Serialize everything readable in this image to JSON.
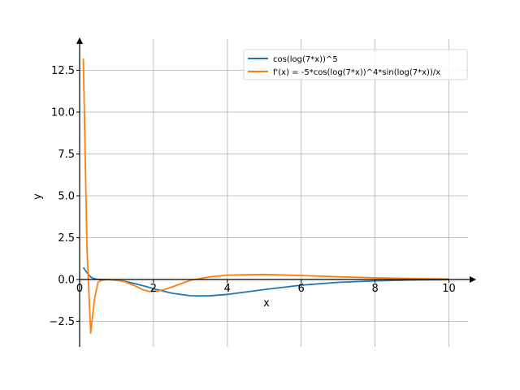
{
  "chart_data": {
    "type": "line",
    "title": "",
    "xlabel": "x",
    "ylabel": "y",
    "xlim": [
      0,
      10.7
    ],
    "ylim": [
      -4.0,
      14.2
    ],
    "xticks": [
      0,
      2,
      4,
      6,
      8,
      10
    ],
    "xtick_labels": [
      "0",
      "2",
      "4",
      "6",
      "8",
      "10"
    ],
    "yticks": [
      -2.5,
      0.0,
      2.5,
      5.0,
      7.5,
      10.0,
      12.5
    ],
    "ytick_labels": [
      "−2.5",
      "0.0",
      "2.5",
      "5.0",
      "7.5",
      "10.0",
      "12.5"
    ],
    "grid": true,
    "legend_position": "top-right",
    "series": [
      {
        "name": "cos(log(7*x))^5",
        "color": "#1f77b4",
        "x": [
          0.1,
          0.2,
          0.3,
          0.4,
          0.5,
          0.6,
          0.8,
          1.0,
          1.2,
          1.5,
          1.8,
          2.0,
          2.5,
          3.0,
          3.5,
          4.0,
          5.0,
          6.0,
          7.0,
          8.0,
          9.0,
          10.0
        ],
        "y": [
          0.72,
          0.4,
          0.15,
          0.04,
          0.01,
          0.0,
          -0.01,
          -0.05,
          -0.1,
          -0.25,
          -0.42,
          -0.55,
          -0.82,
          -0.97,
          -0.98,
          -0.89,
          -0.6,
          -0.34,
          -0.17,
          -0.08,
          -0.03,
          -0.01
        ]
      },
      {
        "name": "f'(x) = -5*cos(log(7*x))^4*sin(log(7*x))/x",
        "color": "#ff7f0e",
        "x": [
          0.1,
          0.2,
          0.3,
          0.4,
          0.5,
          0.6,
          0.8,
          1.0,
          1.2,
          1.5,
          1.7,
          1.9,
          2.1,
          2.3,
          2.5,
          3.0,
          3.5,
          4.0,
          5.0,
          6.0,
          7.0,
          8.0,
          9.0,
          10.0
        ],
        "y": [
          13.2,
          1.8,
          -3.2,
          -1.2,
          -0.15,
          -0.05,
          0.0,
          -0.04,
          -0.12,
          -0.38,
          -0.6,
          -0.72,
          -0.7,
          -0.6,
          -0.45,
          -0.05,
          0.15,
          0.26,
          0.3,
          0.24,
          0.16,
          0.1,
          0.06,
          0.03
        ]
      }
    ]
  }
}
